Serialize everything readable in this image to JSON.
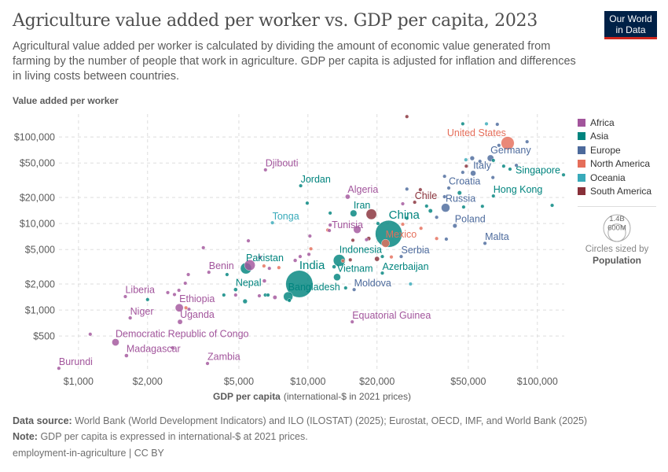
{
  "header": {
    "title": "Agriculture value added per worker vs. GDP per capita, 2023",
    "subtitle": "Agricultural value added per worker is calculated by dividing the amount of economic value generated from farming by the number of people that work in agriculture. GDP per capita is adjusted for inflation and differences in living costs between countries.",
    "logo_line1": "Our World",
    "logo_line2": "in Data"
  },
  "legend": {
    "items": [
      {
        "label": "Africa",
        "color": "#a2559c"
      },
      {
        "label": "Asia",
        "color": "#00847e"
      },
      {
        "label": "Europe",
        "color": "#4c6a9c"
      },
      {
        "label": "North America",
        "color": "#e56e5a"
      },
      {
        "label": "Oceania",
        "color": "#38aaba"
      },
      {
        "label": "South America",
        "color": "#883039"
      }
    ],
    "size_large": "1.4B",
    "size_small": "600M",
    "size_caption": "Circles sized by",
    "size_variable": "Population"
  },
  "footer": {
    "source_label": "Data source:",
    "source": "World Bank (World Development Indicators) and ILO (ILOSTAT) (2025); Eurostat, OECD, IMF, and World Bank (2025)",
    "note_label": "Note:",
    "note": "GDP per capita is expressed in international-$ at 2021 prices.",
    "slug": "employment-in-agriculture | CC BY"
  },
  "chart_data": {
    "type": "scatter",
    "title": "Agriculture value added per worker vs. GDP per capita, 2023",
    "xlabel_bold": "GDP per capita",
    "xlabel_rest": "(international-$ in 2021 prices)",
    "ylabel": "Value added per worker",
    "x_scale": "log",
    "y_scale": "log",
    "xlim": [
      790,
      131000
    ],
    "ylim": [
      204,
      184000
    ],
    "grid": true,
    "legend_position": "right",
    "x_ticks": [
      {
        "value": 1000,
        "label": "$1,000"
      },
      {
        "value": 2000,
        "label": "$2,000"
      },
      {
        "value": 5000,
        "label": "$5,000"
      },
      {
        "value": 10000,
        "label": "$10,000"
      },
      {
        "value": 20000,
        "label": "$20,000"
      },
      {
        "value": 50000,
        "label": "$50,000"
      },
      {
        "value": 100000,
        "label": "$100,000"
      }
    ],
    "y_ticks": [
      {
        "value": 500,
        "label": "$500"
      },
      {
        "value": 1000,
        "label": "$1,000"
      },
      {
        "value": 2000,
        "label": "$2,000"
      },
      {
        "value": 5000,
        "label": "$5,000"
      },
      {
        "value": 10000,
        "label": "$10,000"
      },
      {
        "value": 20000,
        "label": "$20,000"
      },
      {
        "value": 50000,
        "label": "$50,000"
      },
      {
        "value": 100000,
        "label": "$100,000"
      }
    ],
    "series": [
      {
        "name": "Africa",
        "color": "#a2559c",
        "points": [
          {
            "label": "Burundi",
            "x": 821,
            "y": 212,
            "pop": 13
          },
          {
            "label": "Madagascar",
            "x": 1618,
            "y": 297,
            "pop": 30
          },
          {
            "label": "Democratic Republic of Congo",
            "x": 1450,
            "y": 424,
            "pop": 102
          },
          {
            "label": "Zambia",
            "x": 3650,
            "y": 241,
            "pop": 20
          },
          {
            "label": "Niger",
            "x": 1680,
            "y": 810,
            "pop": 27
          },
          {
            "label": "Uganda",
            "x": 2770,
            "y": 730,
            "pop": 48
          },
          {
            "label": "Ethiopia",
            "x": 2750,
            "y": 1060,
            "pop": 127
          },
          {
            "label": "Liberia",
            "x": 1600,
            "y": 1430,
            "pop": 5
          },
          {
            "label": "Benin",
            "x": 3700,
            "y": 2730,
            "pop": 13
          },
          {
            "label": "Djibouti",
            "x": 6530,
            "y": 41700,
            "pop": 1
          },
          {
            "label": "Algeria",
            "x": 14900,
            "y": 20400,
            "pop": 45
          },
          {
            "label": "Tunisia",
            "x": 12500,
            "y": 9600,
            "pop": 12
          },
          {
            "label": "Equatorial Guinea",
            "x": 15600,
            "y": 730,
            "pop": 2
          },
          {
            "x": 5580,
            "y": 3300,
            "pop": 224
          },
          {
            "x": 16400,
            "y": 8500,
            "pop": 112
          },
          {
            "x": 1125,
            "y": 525,
            "pop": 5
          },
          {
            "x": 2450,
            "y": 1590,
            "pop": 10
          },
          {
            "x": 2620,
            "y": 1510,
            "pop": 8
          },
          {
            "x": 2740,
            "y": 1690,
            "pop": 9
          },
          {
            "x": 2920,
            "y": 2040,
            "pop": 6
          },
          {
            "x": 3010,
            "y": 2570,
            "pop": 5
          },
          {
            "x": 3030,
            "y": 1020,
            "pop": 8
          },
          {
            "x": 2570,
            "y": 366,
            "pop": 5
          },
          {
            "x": 3500,
            "y": 5250,
            "pop": 5
          },
          {
            "x": 4840,
            "y": 1490,
            "pop": 12
          },
          {
            "x": 5500,
            "y": 6310,
            "pop": 5
          },
          {
            "x": 6170,
            "y": 4070,
            "pop": 4
          },
          {
            "x": 6790,
            "y": 3030,
            "pop": 18
          },
          {
            "x": 6460,
            "y": 2170,
            "pop": 30
          },
          {
            "x": 6140,
            "y": 1460,
            "pop": 6
          },
          {
            "x": 7180,
            "y": 1400,
            "pop": 34
          },
          {
            "x": 8800,
            "y": 3740,
            "pop": 28
          },
          {
            "x": 9250,
            "y": 4150,
            "pop": 5
          },
          {
            "x": 10100,
            "y": 4400,
            "pop": 5
          },
          {
            "x": 10200,
            "y": 7160,
            "pop": 5
          },
          {
            "x": 12400,
            "y": 8300,
            "pop": 6
          },
          {
            "x": 25900,
            "y": 16900,
            "pop": 3
          },
          {
            "x": 18000,
            "y": 6500,
            "pop": 6
          }
        ]
      },
      {
        "name": "Asia",
        "color": "#00847e",
        "points": [
          {
            "label": "Pakistan",
            "x": 5370,
            "y": 3030,
            "pop": 240
          },
          {
            "label": "Nepal",
            "x": 4840,
            "y": 1720,
            "pop": 30
          },
          {
            "label": "India",
            "x": 9170,
            "y": 2000,
            "pop": 1430
          },
          {
            "label": "Bangladesh",
            "x": 8200,
            "y": 1430,
            "pop": 173
          },
          {
            "label": "Jordan",
            "x": 9300,
            "y": 27300,
            "pop": 11
          },
          {
            "label": "Iran",
            "x": 15800,
            "y": 13100,
            "pop": 89
          },
          {
            "label": "China",
            "x": 22500,
            "y": 7600,
            "pop": 1410
          },
          {
            "label": "Indonesia",
            "x": 13700,
            "y": 3740,
            "pop": 277
          },
          {
            "label": "Vietnam",
            "x": 13400,
            "y": 2400,
            "pop": 99
          },
          {
            "label": "Azerbaijan",
            "x": 21100,
            "y": 2670,
            "pop": 10
          },
          {
            "label": "Hong Kong",
            "x": 64300,
            "y": 20800,
            "pop": 7
          },
          {
            "label": "Singapore",
            "x": 130000,
            "y": 36500,
            "pop": 6
          },
          {
            "x": 2000,
            "y": 1320,
            "pop": 20
          },
          {
            "x": 4440,
            "y": 2570,
            "pop": 7
          },
          {
            "x": 4300,
            "y": 1490,
            "pop": 10
          },
          {
            "x": 5320,
            "y": 1260,
            "pop": 40
          },
          {
            "x": 6520,
            "y": 1490,
            "pop": 7
          },
          {
            "x": 6700,
            "y": 1490,
            "pop": 6
          },
          {
            "x": 8300,
            "y": 1290,
            "pop": 5
          },
          {
            "x": 9930,
            "y": 17200,
            "pop": 20
          },
          {
            "x": 12500,
            "y": 13200,
            "pop": 10
          },
          {
            "x": 13000,
            "y": 3160,
            "pop": 30
          },
          {
            "x": 14600,
            "y": 1800,
            "pop": 5
          },
          {
            "x": 21100,
            "y": 4150,
            "pop": 5
          },
          {
            "x": 20200,
            "y": 10000,
            "pop": 5
          },
          {
            "x": 32900,
            "y": 15900,
            "pop": 8
          },
          {
            "x": 34200,
            "y": 14000,
            "pop": 35
          },
          {
            "x": 45800,
            "y": 22600,
            "pop": 36
          },
          {
            "x": 47700,
            "y": 15500,
            "pop": 5
          },
          {
            "x": 57600,
            "y": 15800,
            "pop": 5
          },
          {
            "x": 116000,
            "y": 16200,
            "pop": 3
          },
          {
            "x": 47300,
            "y": 142000,
            "pop": 5
          },
          {
            "x": 64300,
            "y": 53600,
            "pop": 9
          },
          {
            "x": 71300,
            "y": 46000,
            "pop": 5
          },
          {
            "x": 76000,
            "y": 42500,
            "pop": 4
          },
          {
            "x": 27000,
            "y": 11500,
            "pop": 5
          }
        ]
      },
      {
        "name": "Europe",
        "color": "#4c6a9c",
        "points": [
          {
            "label": "Serbia",
            "x": 25500,
            "y": 4150,
            "pop": 7
          },
          {
            "label": "Moldova",
            "x": 15900,
            "y": 1720,
            "pop": 3
          },
          {
            "label": "Russia",
            "x": 39800,
            "y": 15200,
            "pop": 144
          },
          {
            "label": "Croatia",
            "x": 41100,
            "y": 25700,
            "pop": 4
          },
          {
            "label": "Poland",
            "x": 43700,
            "y": 9400,
            "pop": 37
          },
          {
            "label": "Malta",
            "x": 59100,
            "y": 5900,
            "pop": 1
          },
          {
            "label": "Italy",
            "x": 52500,
            "y": 38100,
            "pop": 59
          },
          {
            "label": "Germany",
            "x": 62500,
            "y": 56900,
            "pop": 84
          },
          {
            "x": 66900,
            "y": 140000,
            "pop": 5
          },
          {
            "x": 90200,
            "y": 88100,
            "pop": 6
          },
          {
            "x": 52000,
            "y": 56800,
            "pop": 40
          },
          {
            "x": 56200,
            "y": 52300,
            "pop": 10
          },
          {
            "x": 47300,
            "y": 39000,
            "pop": 17
          },
          {
            "x": 39400,
            "y": 35100,
            "pop": 10
          },
          {
            "x": 39400,
            "y": 20400,
            "pop": 5
          },
          {
            "x": 27000,
            "y": 25000,
            "pop": 3
          },
          {
            "x": 64000,
            "y": 34000,
            "pop": 5
          },
          {
            "x": 81000,
            "y": 47000,
            "pop": 5
          },
          {
            "x": 36400,
            "y": 11800,
            "pop": 5
          },
          {
            "x": 40100,
            "y": 6600,
            "pop": 3
          },
          {
            "x": 68000,
            "y": 80000,
            "pop": 10
          }
        ]
      },
      {
        "name": "North America",
        "color": "#e56e5a",
        "points": [
          {
            "label": "United States",
            "x": 74200,
            "y": 84900,
            "pop": 335
          },
          {
            "label": "Mexico",
            "x": 21800,
            "y": 5900,
            "pop": 128
          },
          {
            "x": 2940,
            "y": 1060,
            "pop": 4
          },
          {
            "x": 6430,
            "y": 3230,
            "pop": 5
          },
          {
            "x": 7470,
            "y": 3090,
            "pop": 6
          },
          {
            "x": 10300,
            "y": 5100,
            "pop": 5
          },
          {
            "x": 14200,
            "y": 3700,
            "pop": 5
          },
          {
            "x": 23100,
            "y": 4100,
            "pop": 5
          },
          {
            "x": 31100,
            "y": 8800,
            "pop": 5
          },
          {
            "x": 36400,
            "y": 6700,
            "pop": 3
          },
          {
            "x": 25900,
            "y": 9800,
            "pop": 3
          },
          {
            "x": 12200,
            "y": 8400,
            "pop": 10
          }
        ]
      },
      {
        "name": "Oceania",
        "color": "#38aaba",
        "points": [
          {
            "label": "Tonga",
            "x": 7000,
            "y": 10200,
            "pop": 1
          },
          {
            "x": 60000,
            "y": 142000,
            "pop": 5
          },
          {
            "x": 48800,
            "y": 54500,
            "pop": 26
          },
          {
            "x": 28000,
            "y": 2000,
            "pop": 3
          }
        ]
      },
      {
        "name": "South America",
        "color": "#883039",
        "points": [
          {
            "label": "Chile",
            "x": 29200,
            "y": 17600,
            "pop": 20
          },
          {
            "x": 18900,
            "y": 12800,
            "pop": 216
          },
          {
            "x": 27000,
            "y": 172000,
            "pop": 3
          },
          {
            "x": 49000,
            "y": 46000,
            "pop": 3
          },
          {
            "x": 30900,
            "y": 24600,
            "pop": 4
          },
          {
            "x": 15700,
            "y": 6400,
            "pop": 7
          },
          {
            "x": 18400,
            "y": 6700,
            "pop": 34
          },
          {
            "x": 15300,
            "y": 3800,
            "pop": 12
          },
          {
            "x": 20000,
            "y": 3900,
            "pop": 46
          }
        ]
      }
    ]
  }
}
